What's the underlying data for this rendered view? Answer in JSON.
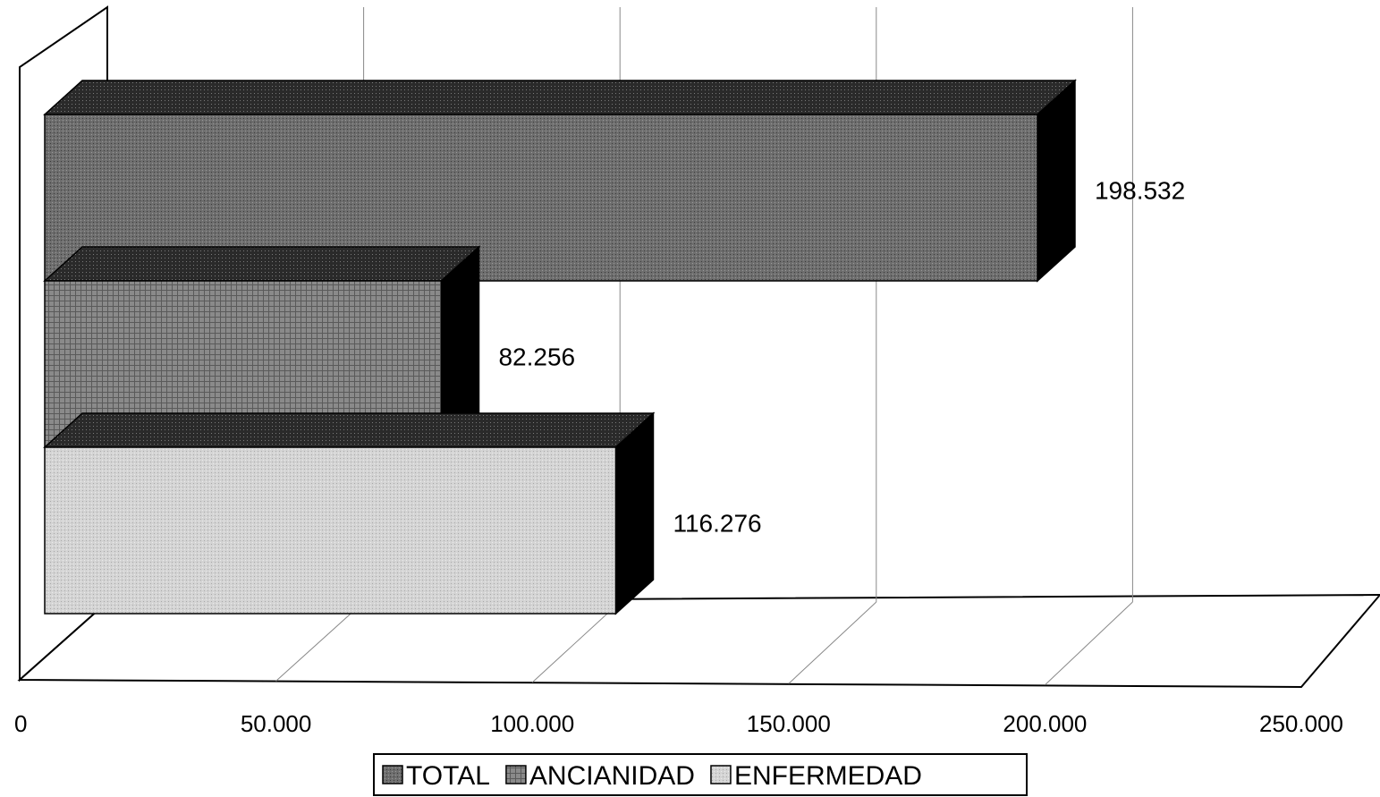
{
  "chart_data": {
    "type": "bar",
    "orientation": "horizontal",
    "three_d": true,
    "series": [
      {
        "name": "TOTAL",
        "value": 198532,
        "label": "198.532",
        "color": "#6e6e6e"
      },
      {
        "name": "ANCIANIDAD",
        "value": 82256,
        "label": "82.256",
        "color": "#8a8a8a"
      },
      {
        "name": "ENFERMEDAD",
        "value": 116276,
        "label": "116.276",
        "color": "#cfcfcf"
      }
    ],
    "xlim": [
      0,
      250000
    ],
    "x_ticks": [
      0,
      50000,
      100000,
      150000,
      200000,
      250000
    ],
    "x_tick_labels": [
      "0",
      "50.000",
      "100.000",
      "150.000",
      "200.000",
      "250.000"
    ],
    "grid": true,
    "legend_position": "bottom",
    "title": "",
    "xlabel": "",
    "ylabel": ""
  }
}
